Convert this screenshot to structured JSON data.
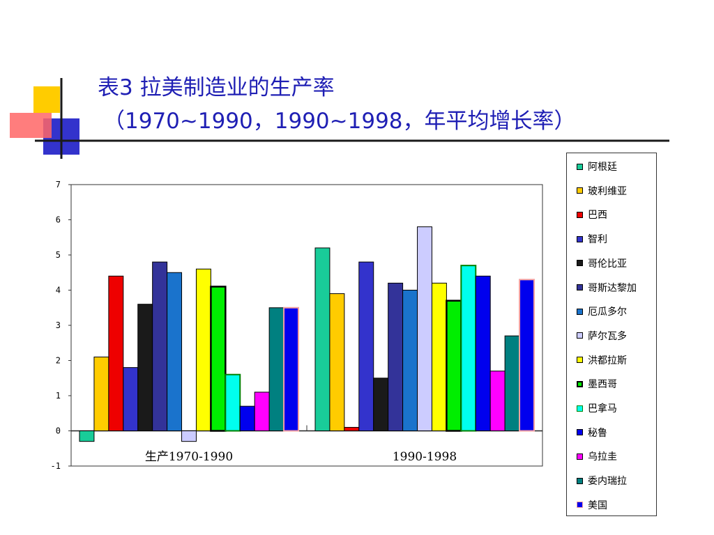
{
  "slide": {
    "title_line1": "表3 拉美制造业的生产率",
    "title_line2": "（1970~1990，1990~1998，年平均增长率）"
  },
  "chart_data": {
    "type": "bar",
    "categories": [
      "生产1970-1990",
      "1990-1998"
    ],
    "ylim": [
      -1,
      7
    ],
    "yticks": [
      "7",
      "6",
      "5",
      "4",
      "3",
      "2",
      "1",
      "0",
      "-1"
    ],
    "grid": false,
    "legend_position": "right",
    "series": [
      {
        "name": "阿根廷",
        "color": "#19cc99",
        "values": [
          -0.3,
          5.2
        ]
      },
      {
        "name": "玻利维亚",
        "color": "#ffcc00",
        "values": [
          2.1,
          3.9
        ]
      },
      {
        "name": "巴西",
        "color": "#ee0000",
        "values": [
          4.4,
          0.1
        ]
      },
      {
        "name": "智利",
        "color": "#3333cc",
        "values": [
          1.8,
          4.8
        ]
      },
      {
        "name": "哥伦比亚",
        "color": "#1a1a1a",
        "values": [
          3.6,
          1.5
        ]
      },
      {
        "name": "哥斯达黎加",
        "color": "#333399",
        "values": [
          4.8,
          4.2
        ]
      },
      {
        "name": "厄瓜多尔",
        "color": "#1a73cc",
        "values": [
          4.5,
          4.0
        ]
      },
      {
        "name": "萨尔瓦多",
        "color": "#ccccff",
        "values": [
          -0.3,
          5.8
        ]
      },
      {
        "name": "洪都拉斯",
        "color": "#ffff00",
        "values": [
          4.6,
          4.2
        ]
      },
      {
        "name": "墨西哥",
        "color": "#00ee00",
        "values": [
          4.1,
          3.7
        ]
      },
      {
        "name": "巴拿马",
        "color": "#00ffee",
        "values": [
          1.6,
          4.7
        ]
      },
      {
        "name": "秘鲁",
        "color": "#0000ee",
        "values": [
          0.7,
          4.4
        ]
      },
      {
        "name": "乌拉圭",
        "color": "#ff00ff",
        "values": [
          1.1,
          1.7
        ]
      },
      {
        "name": "委内瑞拉",
        "color": "#008080",
        "values": [
          3.5,
          2.7
        ]
      },
      {
        "name": "美国",
        "color": "#0000ee",
        "values": [
          3.5,
          4.3
        ]
      }
    ]
  }
}
